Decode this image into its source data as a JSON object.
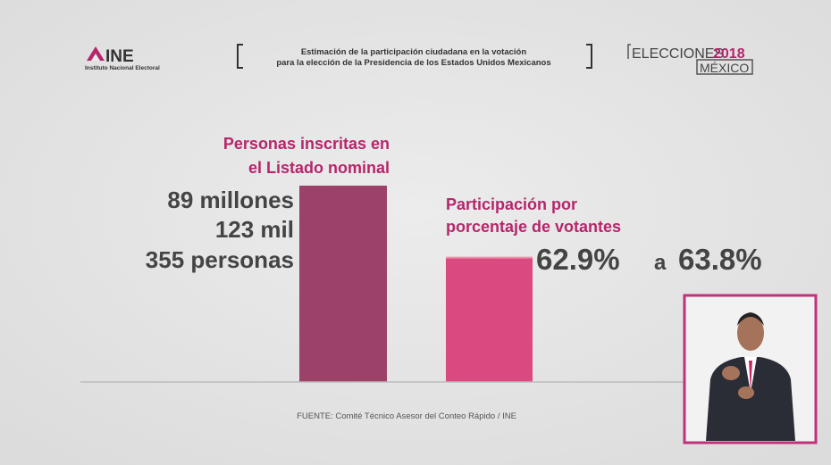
{
  "header": {
    "logo": "INE",
    "logo_subtitle": "Instituto Nacional Electoral",
    "title_lines": [
      "Estimación de la participación ciudadana en la votación",
      "para la elección de la Presidencia de los Estados Unidos Mexicanos"
    ],
    "brand": "ELECCIONES",
    "brand_year": "2018",
    "brand_country": "MÉXICO"
  },
  "chart_data": {
    "type": "bar",
    "nominal": {
      "label_lines": [
        "Personas inscritas en",
        "el Listado nominal"
      ],
      "value": 89123355,
      "value_labels": [
        "89 millones",
        "123 mil",
        "355 personas"
      ],
      "color": "#9c4168"
    },
    "participation": {
      "label_lines": [
        "Participación por",
        "porcentaje de votantes"
      ],
      "low": 62.9,
      "high": 63.8,
      "value_labels": [
        "62.9%",
        "63.8%"
      ],
      "connector": "a",
      "color": "#da4a80",
      "range_color": "#eb93ad"
    }
  },
  "source": "FUENTE: Comité Técnico Asesor del Conteo Rápido / INE"
}
